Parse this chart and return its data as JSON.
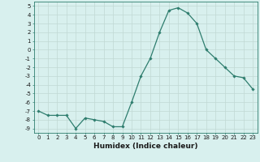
{
  "x": [
    0,
    1,
    2,
    3,
    4,
    5,
    6,
    7,
    8,
    9,
    10,
    11,
    12,
    13,
    14,
    15,
    16,
    17,
    18,
    19,
    20,
    21,
    22,
    23
  ],
  "y": [
    -7,
    -7.5,
    -7.5,
    -7.5,
    -9,
    -7.8,
    -8,
    -8.2,
    -8.8,
    -8.8,
    -6,
    -3,
    -1,
    2,
    4.5,
    4.8,
    4.2,
    3,
    0,
    -1,
    -2,
    -3,
    -3.2,
    -4.5
  ],
  "line_color": "#2e7d6e",
  "marker": "D",
  "markersize": 1.8,
  "linewidth": 0.9,
  "bg_color": "#d8f0ee",
  "grid_color": "#c0d8d4",
  "xlabel": "Humidex (Indice chaleur)",
  "xlim": [
    -0.5,
    23.5
  ],
  "ylim": [
    -9.5,
    5.5
  ],
  "yticks": [
    5,
    4,
    3,
    2,
    1,
    0,
    -1,
    -2,
    -3,
    -4,
    -5,
    -6,
    -7,
    -8,
    -9
  ],
  "xticks": [
    0,
    1,
    2,
    3,
    4,
    5,
    6,
    7,
    8,
    9,
    10,
    11,
    12,
    13,
    14,
    15,
    16,
    17,
    18,
    19,
    20,
    21,
    22,
    23
  ],
  "xlabel_fontsize": 6.5,
  "tick_fontsize": 5.0
}
